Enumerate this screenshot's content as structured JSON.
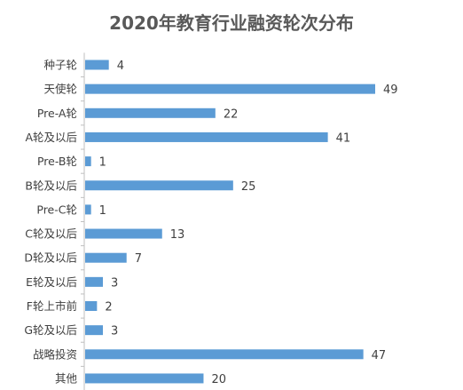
{
  "chart_data": {
    "type": "bar",
    "orientation": "horizontal",
    "title": "2020年教育行业融资轮次分布",
    "categories": [
      "种子轮",
      "天使轮",
      "Pre-A轮",
      "A轮及以后",
      "Pre-B轮",
      "B轮及以后",
      "Pre-C轮",
      "C轮及以后",
      "D轮及以后",
      "E轮及以后",
      "F轮上市前",
      "G轮及以后",
      "战略投资",
      "其他"
    ],
    "values": [
      4,
      49,
      22,
      41,
      1,
      25,
      1,
      13,
      7,
      3,
      2,
      3,
      47,
      20
    ],
    "data_labels": true,
    "grid": false,
    "legend": "none",
    "xlim": [
      0,
      49
    ],
    "bar_color": "#5B9BD5",
    "axis_color": "#BFBFBF"
  }
}
